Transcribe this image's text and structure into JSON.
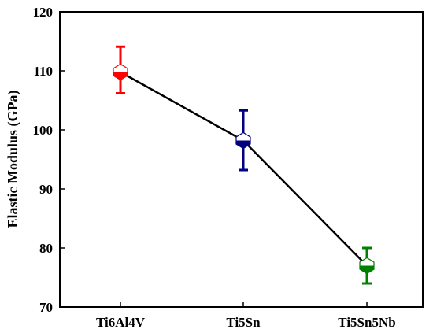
{
  "chart_data": {
    "type": "scatter",
    "title": "",
    "xlabel": "",
    "ylabel": "Elastic Modulus (GPa)",
    "ylim": [
      70,
      120
    ],
    "yticks": [
      70,
      80,
      90,
      100,
      110,
      120
    ],
    "grid": false,
    "categories": [
      "Ti6Al4V",
      "Ti5Sn",
      "Ti5Sn5Nb"
    ],
    "values": [
      109.8,
      98.2,
      77.0
    ],
    "error_low": [
      106.2,
      93.2,
      74.0
    ],
    "error_high": [
      114.1,
      103.3,
      80.0
    ],
    "colors": [
      "#ff0000",
      "#000080",
      "#008000"
    ],
    "line_color": "#000000",
    "marker": "half-filled-hexagon"
  }
}
